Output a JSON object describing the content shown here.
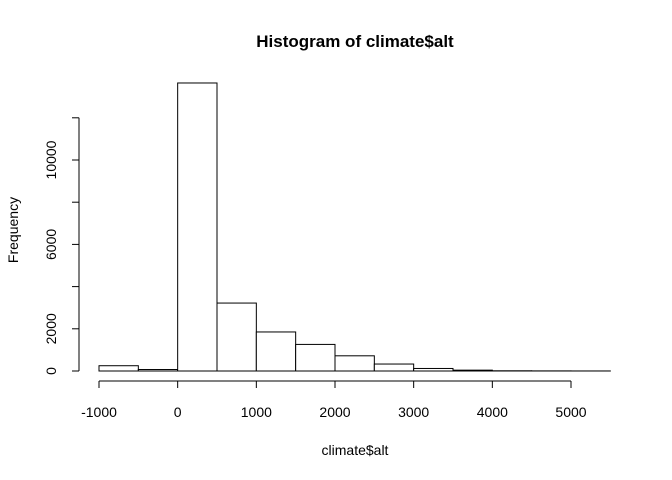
{
  "chart_data": {
    "type": "bar",
    "title": "Histogram of climate$alt",
    "xlabel": "climate$alt",
    "ylabel": "Frequency",
    "bins": [
      {
        "from": -1000,
        "to": -500,
        "count": 250
      },
      {
        "from": -500,
        "to": 0,
        "count": 70
      },
      {
        "from": 0,
        "to": 500,
        "count": 13650
      },
      {
        "from": 500,
        "to": 1000,
        "count": 3220
      },
      {
        "from": 1000,
        "to": 1500,
        "count": 1850
      },
      {
        "from": 1500,
        "to": 2000,
        "count": 1260
      },
      {
        "from": 2000,
        "to": 2500,
        "count": 720
      },
      {
        "from": 2500,
        "to": 3000,
        "count": 330
      },
      {
        "from": 3000,
        "to": 3500,
        "count": 120
      },
      {
        "from": 3500,
        "to": 4000,
        "count": 40
      },
      {
        "from": 4000,
        "to": 4500,
        "count": 10
      },
      {
        "from": 4500,
        "to": 5000,
        "count": 5
      },
      {
        "from": 5000,
        "to": 5500,
        "count": 2
      }
    ],
    "x_ticks": [
      -1000,
      0,
      1000,
      2000,
      3000,
      4000,
      5000
    ],
    "y_ticks": [
      0,
      2000,
      6000,
      10000
    ],
    "y_ticks_unlabeled": [
      4000,
      8000,
      12000
    ],
    "xlim": [
      -1000,
      5500
    ],
    "ylim": [
      0,
      14000
    ],
    "grid": false,
    "legend": "none"
  }
}
